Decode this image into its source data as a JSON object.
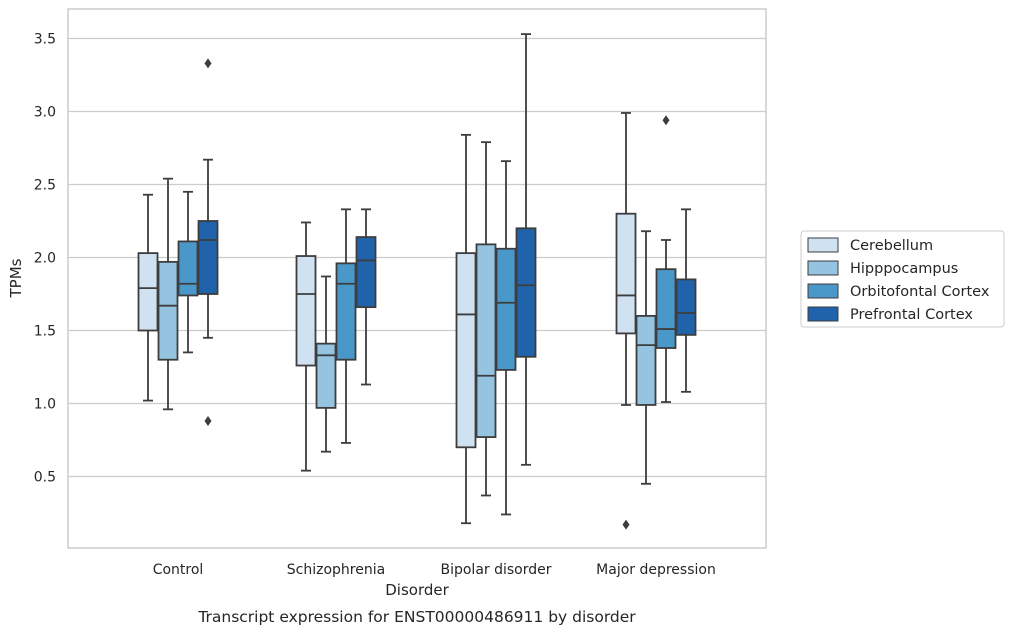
{
  "chart_data": {
    "type": "boxplot",
    "caption": "Transcript expression for ENST00000486911 by disorder",
    "xlabel": "Disorder",
    "ylabel": "TPMs",
    "ylim": [
      0.0,
      3.7
    ],
    "yticks": [
      "0.5",
      "1.0",
      "1.5",
      "2.0",
      "2.5",
      "3.0",
      "3.5"
    ],
    "grid": true,
    "legend_position": "right",
    "categories": [
      "Control",
      "Schizophrenia",
      "Bipolar disorder",
      "Major depression"
    ],
    "series": [
      {
        "name": "Cerebellum",
        "color": "#d0e1f2",
        "boxes": [
          {
            "whislo": 1.02,
            "q1": 1.5,
            "med": 1.79,
            "q3": 2.03,
            "whishi": 2.43,
            "fliers": []
          },
          {
            "whislo": 0.54,
            "q1": 1.26,
            "med": 1.75,
            "q3": 2.01,
            "whishi": 2.24,
            "fliers": []
          },
          {
            "whislo": 0.18,
            "q1": 0.7,
            "med": 1.61,
            "q3": 2.03,
            "whishi": 2.84,
            "fliers": []
          },
          {
            "whislo": 0.99,
            "q1": 1.48,
            "med": 1.74,
            "q3": 2.3,
            "whishi": 2.99,
            "fliers": [
              0.17
            ]
          }
        ]
      },
      {
        "name": "Hipppocampus",
        "color": "#94c4df",
        "boxes": [
          {
            "whislo": 0.96,
            "q1": 1.3,
            "med": 1.67,
            "q3": 1.97,
            "whishi": 2.54,
            "fliers": []
          },
          {
            "whislo": 0.67,
            "q1": 0.97,
            "med": 1.33,
            "q3": 1.41,
            "whishi": 1.87,
            "fliers": []
          },
          {
            "whislo": 0.37,
            "q1": 0.77,
            "med": 1.19,
            "q3": 2.09,
            "whishi": 2.79,
            "fliers": []
          },
          {
            "whislo": 0.45,
            "q1": 0.99,
            "med": 1.4,
            "q3": 1.6,
            "whishi": 2.18,
            "fliers": []
          }
        ]
      },
      {
        "name": "Orbitofontal Cortex",
        "color": "#4a98c9",
        "boxes": [
          {
            "whislo": 1.35,
            "q1": 1.74,
            "med": 1.82,
            "q3": 2.11,
            "whishi": 2.45,
            "fliers": []
          },
          {
            "whislo": 0.73,
            "q1": 1.3,
            "med": 1.82,
            "q3": 1.96,
            "whishi": 2.33,
            "fliers": []
          },
          {
            "whislo": 0.24,
            "q1": 1.23,
            "med": 1.69,
            "q3": 2.06,
            "whishi": 2.66,
            "fliers": []
          },
          {
            "whislo": 1.01,
            "q1": 1.38,
            "med": 1.51,
            "q3": 1.92,
            "whishi": 2.12,
            "fliers": [
              2.94
            ]
          }
        ]
      },
      {
        "name": "Prefrontal Cortex",
        "color": "#2163aa",
        "boxes": [
          {
            "whislo": 1.45,
            "q1": 1.75,
            "med": 2.12,
            "q3": 2.25,
            "whishi": 2.67,
            "fliers": [
              3.33,
              0.88
            ]
          },
          {
            "whislo": 1.13,
            "q1": 1.66,
            "med": 1.98,
            "q3": 2.14,
            "whishi": 2.33,
            "fliers": []
          },
          {
            "whislo": 0.58,
            "q1": 1.32,
            "med": 1.81,
            "q3": 2.2,
            "whishi": 3.53,
            "fliers": []
          },
          {
            "whislo": 1.08,
            "q1": 1.47,
            "med": 1.62,
            "q3": 1.85,
            "whishi": 2.33,
            "fliers": []
          }
        ]
      }
    ]
  }
}
